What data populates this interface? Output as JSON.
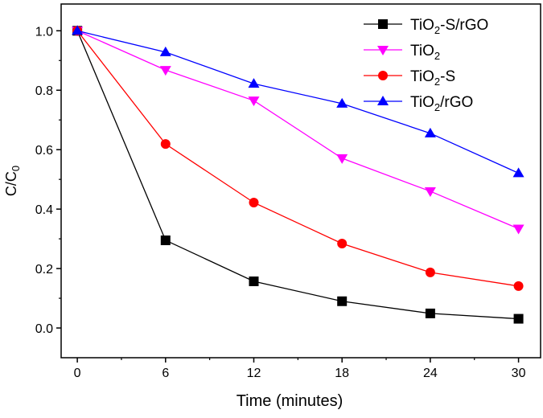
{
  "chart_data": {
    "type": "line",
    "title": "",
    "xlabel": "Time (minutes)",
    "ylabel": "C/C0",
    "ylabel_parts": {
      "main": "C/C",
      "sub": "0"
    },
    "x": [
      0,
      6,
      12,
      18,
      24,
      30
    ],
    "xlim": [
      -1.1,
      31.5
    ],
    "ylim": [
      -0.1,
      1.09
    ],
    "xticks": [
      0,
      6,
      12,
      18,
      24,
      30
    ],
    "xtick_labels": [
      "0",
      "6",
      "12",
      "18",
      "24",
      "30"
    ],
    "yticks": [
      0.0,
      0.2,
      0.4,
      0.6,
      0.8,
      1.0
    ],
    "ytick_labels": [
      "0.0",
      "0.2",
      "0.4",
      "0.6",
      "0.8",
      "1.0"
    ],
    "grid": false,
    "legend_position": "top-right",
    "series": [
      {
        "name": "TiO2-S/rGO",
        "label_parts": [
          "TiO",
          "2",
          "-S/rGO"
        ],
        "color": "#000000",
        "marker": "square",
        "values": [
          1.0,
          0.295,
          0.157,
          0.09,
          0.049,
          0.031
        ]
      },
      {
        "name": "TiO2",
        "label_parts": [
          "TiO",
          "2",
          ""
        ],
        "color": "#ff00ff",
        "marker": "triangle-down",
        "values": [
          1.0,
          0.868,
          0.765,
          0.571,
          0.46,
          0.334
        ]
      },
      {
        "name": "TiO2-S",
        "label_parts": [
          "TiO",
          "2",
          "-S"
        ],
        "color": "#ff0000",
        "marker": "circle",
        "values": [
          1.0,
          0.619,
          0.422,
          0.284,
          0.187,
          0.141
        ]
      },
      {
        "name": "TiO2/rGO",
        "label_parts": [
          "TiO",
          "2",
          "/rGO"
        ],
        "color": "#0000ff",
        "marker": "triangle-up",
        "values": [
          1.0,
          0.928,
          0.822,
          0.755,
          0.655,
          0.521
        ]
      }
    ]
  }
}
